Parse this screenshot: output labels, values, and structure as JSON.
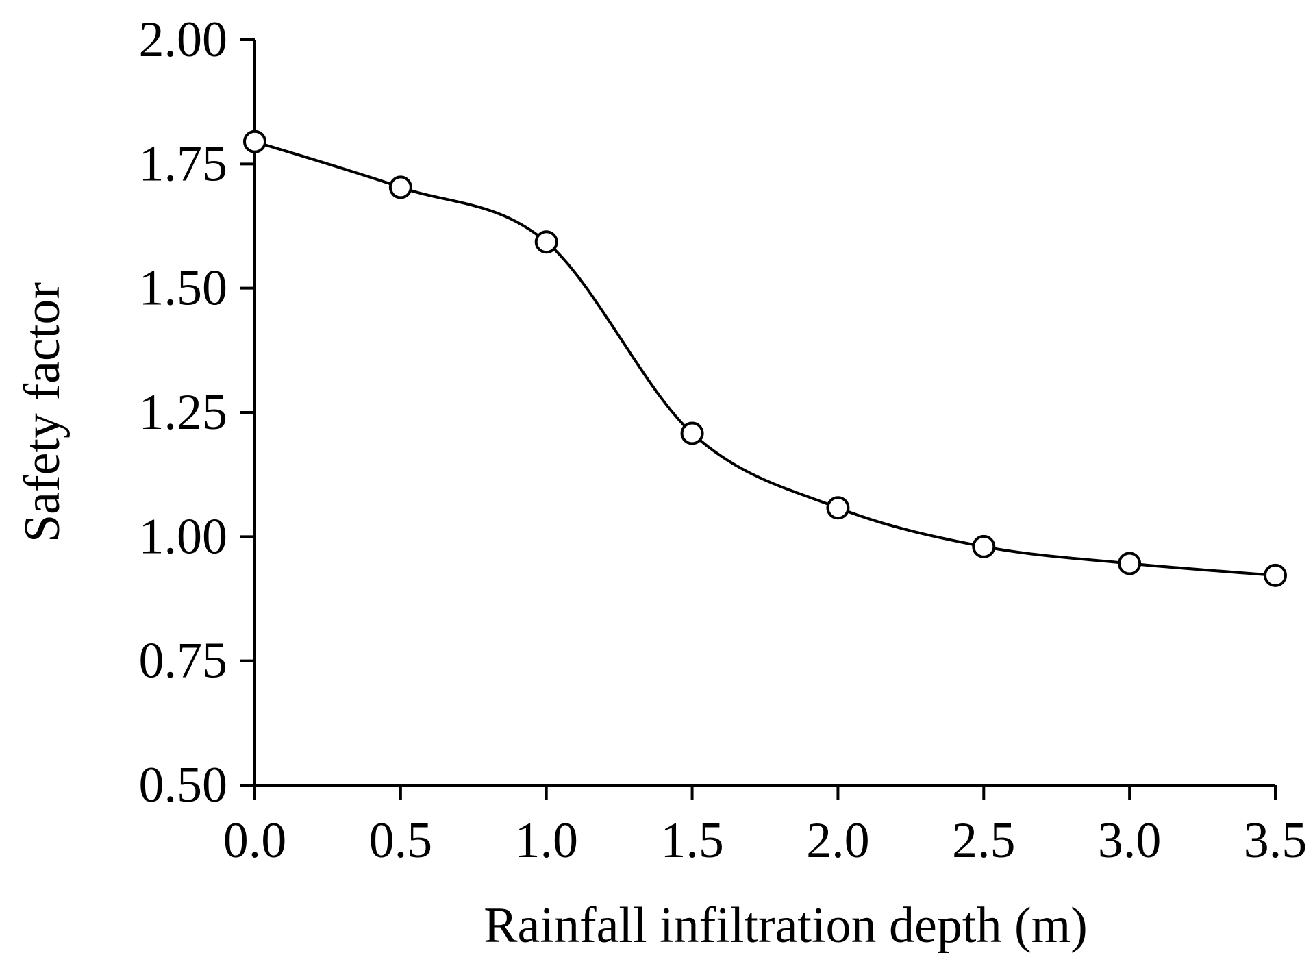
{
  "chart_data": {
    "type": "line",
    "title": "",
    "xlabel": "Rainfall infiltration depth (m)",
    "ylabel": "Safety factor",
    "x": [
      0.0,
      0.5,
      1.0,
      1.5,
      2.0,
      2.5,
      3.0,
      3.5
    ],
    "series": [
      {
        "values": [
          1.795,
          1.703,
          1.593,
          1.208,
          1.058,
          0.98,
          0.946,
          0.922
        ],
        "marker": "open-circle",
        "smooth": true,
        "color": "#000000"
      }
    ],
    "xlim": [
      0.0,
      3.5
    ],
    "ylim": [
      0.5,
      2.0
    ],
    "xticks": [
      "0.0",
      "0.5",
      "1.0",
      "1.5",
      "2.0",
      "2.5",
      "3.0",
      "3.5"
    ],
    "yticks": [
      "0.50",
      "0.75",
      "1.00",
      "1.25",
      "1.50",
      "1.75",
      "2.00"
    ],
    "grid": false,
    "legend": "none"
  }
}
